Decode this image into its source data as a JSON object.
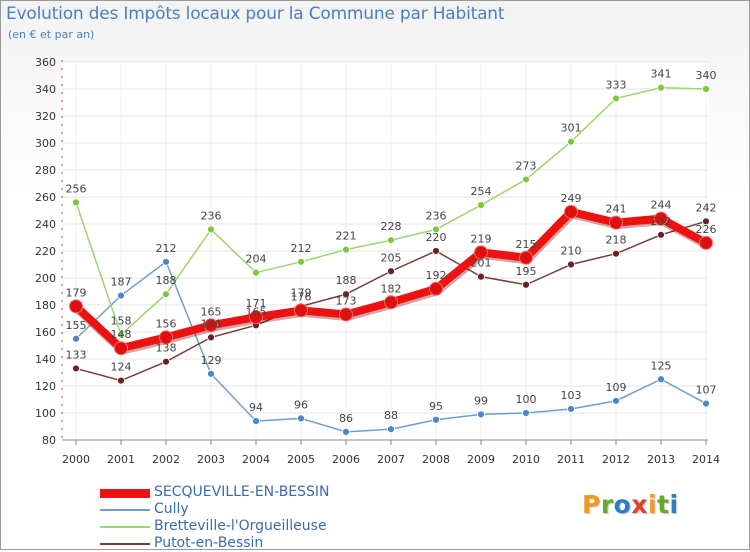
{
  "title": "Evolution des Impôts locaux pour la Commune par Habitant",
  "subtitle": "(en € et par an)",
  "logo": {
    "letters": [
      "P",
      "r",
      "o",
      "x",
      "i",
      "t",
      "i"
    ],
    "colors": [
      "#f39a1e",
      "#6aaa2a",
      "#2f7bc8",
      "#e0402a",
      "#f39a1e",
      "#6aaa2a",
      "#2f7bc8"
    ]
  },
  "chart_data": {
    "type": "line",
    "title": "Evolution des Impôts locaux pour la Commune par Habitant",
    "ylabel": "(en € et par an)",
    "xlabel": "",
    "ylim": [
      80,
      360
    ],
    "yticks": [
      80,
      100,
      120,
      140,
      160,
      180,
      200,
      220,
      240,
      260,
      280,
      300,
      320,
      340,
      360
    ],
    "grid": true,
    "legend_position": "bottom-left",
    "categories": [
      "2000",
      "2001",
      "2002",
      "2003",
      "2004",
      "2005",
      "2006",
      "2007",
      "2008",
      "2009",
      "2010",
      "2011",
      "2012",
      "2013",
      "2014"
    ],
    "series": [
      {
        "name": "SECQUEVILLE-EN-BESSIN",
        "color": "#ee1111",
        "marker": "#dd1010",
        "emphasis": true,
        "values": [
          179,
          148,
          156,
          165,
          171,
          176,
          173,
          182,
          192,
          219,
          215,
          249,
          241,
          244,
          226
        ]
      },
      {
        "name": "Cully",
        "color": "#6f9fd0",
        "marker": "#4a86c8",
        "emphasis": false,
        "values": [
          155,
          187,
          212,
          129,
          94,
          96,
          86,
          88,
          95,
          99,
          100,
          103,
          109,
          125,
          107
        ]
      },
      {
        "name": "Bretteville-l'Orgueilleuse",
        "color": "#9bd66a",
        "marker": "#7cc83c",
        "emphasis": false,
        "values": [
          256,
          158,
          188,
          236,
          204,
          212,
          221,
          228,
          236,
          254,
          273,
          301,
          333,
          341,
          340
        ]
      },
      {
        "name": "Putot-en-Bessin",
        "color": "#7a3b3b",
        "marker": "#6b2222",
        "emphasis": false,
        "values": [
          133,
          124,
          138,
          156,
          165,
          179,
          188,
          205,
          220,
          201,
          195,
          210,
          218,
          232,
          242
        ]
      }
    ]
  }
}
